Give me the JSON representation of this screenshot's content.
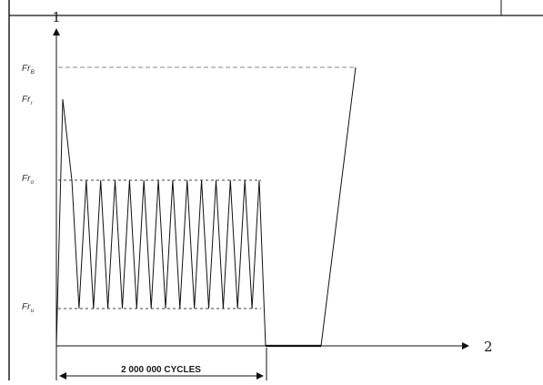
{
  "diagram": {
    "y_axis_label": "1",
    "x_axis_label": "2",
    "levels": [
      {
        "key": "frb",
        "label": "Fr",
        "subscript": "B"
      },
      {
        "key": "frr",
        "label": "Fr",
        "subscript": "r"
      },
      {
        "key": "fro",
        "label": "Fr",
        "subscript": "o"
      },
      {
        "key": "fru",
        "label": "Fr",
        "subscript": "u"
      }
    ],
    "span_label": "2 000 000 CYCLES",
    "cyclic_peak_count": 14
  }
}
